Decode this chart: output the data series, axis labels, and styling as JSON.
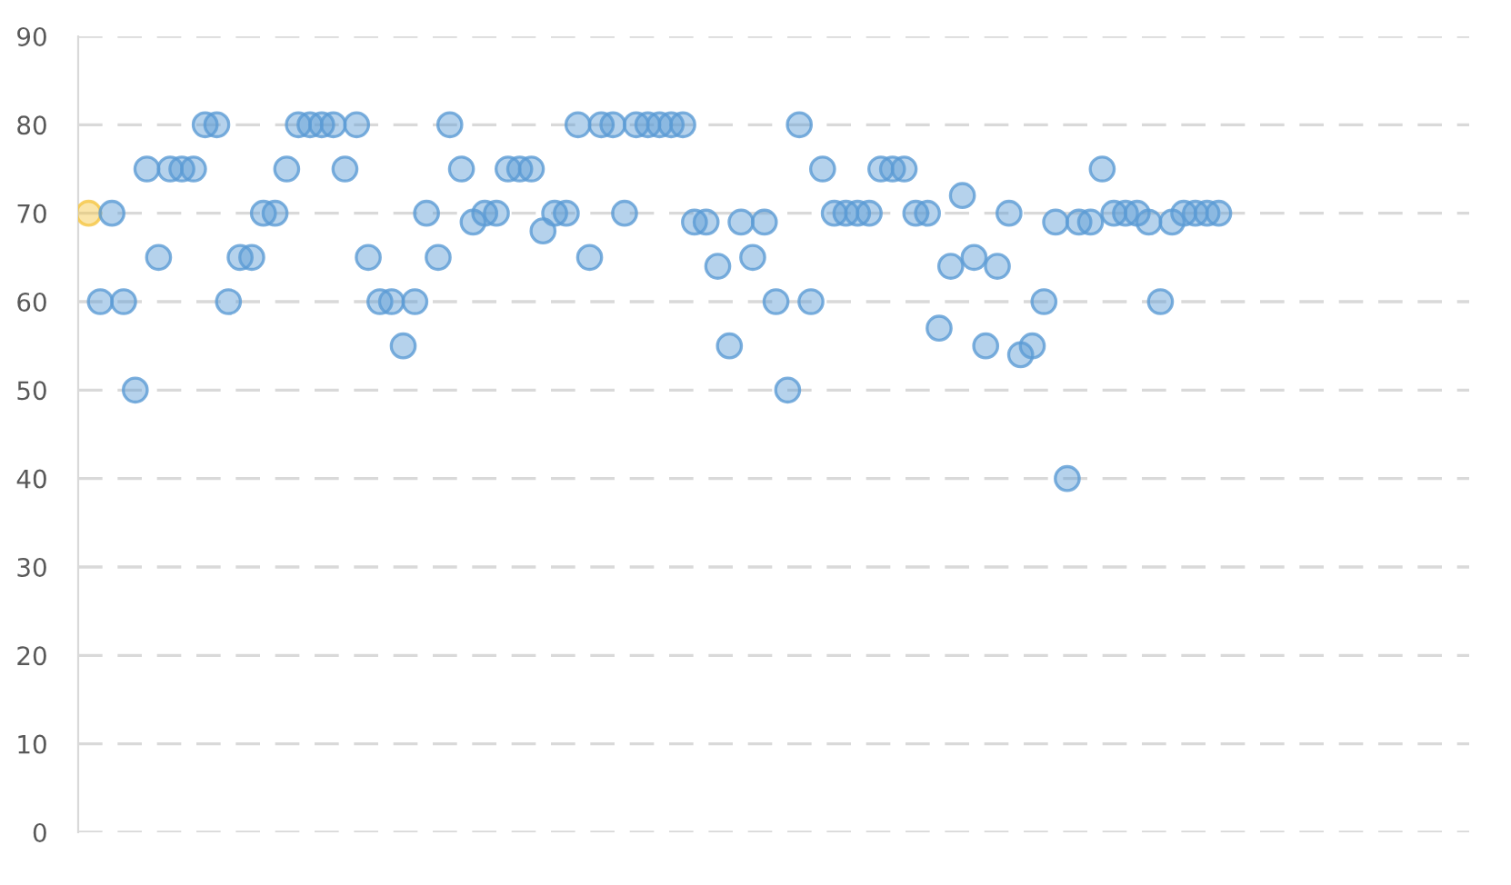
{
  "chart_data": {
    "type": "scatter",
    "categories": [
      null,
      null,
      null,
      null,
      null,
      null,
      null,
      null,
      null,
      null,
      null,
      null,
      null,
      null,
      null,
      null,
      null,
      null,
      null,
      null,
      null,
      null,
      null,
      null,
      null,
      null,
      null,
      null,
      null,
      null,
      null,
      null,
      null,
      null,
      null,
      null,
      null,
      null,
      null,
      null,
      null,
      null,
      null,
      null,
      null,
      null,
      null,
      null,
      null,
      null,
      null,
      null,
      null,
      null,
      null,
      null,
      null,
      null,
      null,
      null,
      null,
      null,
      null,
      null,
      null,
      null,
      null,
      null,
      null,
      null,
      null,
      null,
      null,
      null,
      null,
      null,
      null,
      null,
      null,
      null,
      null,
      null,
      null,
      null,
      null,
      null,
      null,
      null,
      null,
      null,
      null,
      null,
      null,
      null,
      null,
      null,
      null,
      null,
      null,
      null,
      null,
      null,
      null,
      null,
      null,
      null,
      null,
      null,
      null,
      null,
      null,
      null,
      null,
      null,
      null,
      null,
      null,
      null,
      null
    ],
    "ylim": [
      0,
      90
    ],
    "yticks": [
      0,
      10,
      20,
      30,
      40,
      50,
      60,
      70,
      80,
      90
    ],
    "grid": "y",
    "marker": "circle",
    "tick_labels": "y",
    "series": [
      {
        "color": "#f5c542",
        "values": [
          70,
          null,
          null,
          null,
          null,
          null,
          null,
          null,
          null,
          null,
          null,
          null,
          null,
          null,
          null,
          null,
          null,
          null,
          null,
          null,
          null,
          null,
          null,
          null,
          null,
          null,
          null,
          null,
          null,
          null,
          null,
          null,
          null,
          null,
          null,
          null,
          null,
          null,
          null,
          null,
          null,
          null,
          null,
          null,
          null,
          null,
          null,
          null,
          null,
          null,
          null,
          null,
          null,
          null,
          null,
          null,
          null,
          null,
          null,
          null,
          null,
          null,
          null,
          null,
          null,
          null,
          null,
          null,
          null,
          null,
          null,
          null,
          null,
          null,
          null,
          null,
          null,
          null,
          null,
          null,
          null,
          null,
          null,
          null,
          null,
          null,
          null,
          null,
          null,
          null,
          null,
          null,
          null,
          null,
          null,
          null,
          null,
          null,
          null,
          null,
          null,
          null,
          null,
          null,
          null,
          null,
          null,
          null,
          null,
          null,
          null,
          null,
          null,
          null,
          null,
          null,
          null,
          null,
          null
        ]
      },
      {
        "color": "#5b9bd5",
        "values": [
          null,
          60,
          70,
          60,
          50,
          75,
          65,
          75,
          75,
          75,
          80,
          80,
          60,
          65,
          65,
          70,
          70,
          75,
          80,
          80,
          80,
          80,
          75,
          80,
          65,
          60,
          60,
          55,
          60,
          70,
          65,
          80,
          75,
          69,
          70,
          70,
          75,
          75,
          75,
          68,
          70,
          70,
          80,
          65,
          80,
          80,
          70,
          80,
          80,
          80,
          80,
          80,
          69,
          69,
          64,
          55,
          69,
          65,
          69,
          60,
          50,
          80,
          60,
          75,
          70,
          70,
          70,
          70,
          75,
          75,
          75,
          70,
          70,
          57,
          64,
          72,
          65,
          55,
          64,
          70,
          54,
          55,
          60,
          69,
          40,
          69,
          69,
          75,
          70,
          70,
          70,
          69,
          60,
          69,
          70,
          70,
          70,
          70,
          null,
          null,
          null,
          null,
          null,
          null,
          null,
          null,
          null,
          null,
          null,
          null,
          null,
          null,
          null,
          null,
          null,
          null,
          null,
          null,
          null
        ]
      }
    ]
  }
}
